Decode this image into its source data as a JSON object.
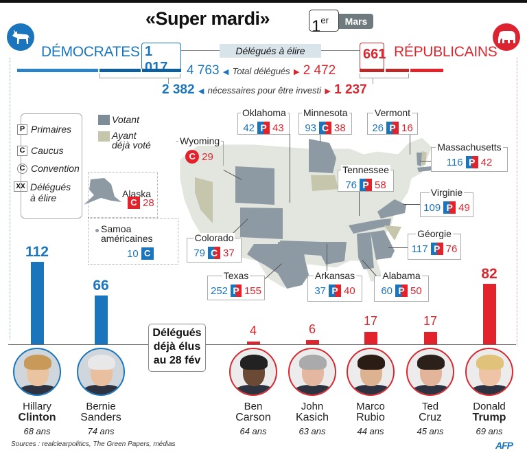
{
  "header": {
    "title": "«Super mardi»",
    "day": "1",
    "day_suffix": "er",
    "month": "Mars"
  },
  "parties": {
    "dem": {
      "name": "DÉMOCRATES",
      "to_elect": "1 017",
      "total": "4 763",
      "needed": "2 382",
      "icon": "donkey-icon",
      "color": "#1a75bc"
    },
    "rep": {
      "name": "RÉPUBLICAINS",
      "to_elect": "661",
      "total": "2 472",
      "needed": "1 237",
      "icon": "elephant-icon",
      "color": "#d7282f"
    }
  },
  "labels": {
    "to_elect": "Délégués à élire",
    "total": "Total délégués",
    "needed": "nécessaires pour être investi"
  },
  "legend": {
    "primary_glyph": "P",
    "primary": "Primaires",
    "caucus_glyph": "C",
    "caucus": "Caucus",
    "convention_glyph": "C",
    "convention": "Convention",
    "delegates_glyph": "XX",
    "delegates_line1": "Délégués",
    "delegates_line2": "à élire",
    "voting": "Votant",
    "voted_line1": "Ayant",
    "voted_line2": "déjà voté"
  },
  "states": [
    {
      "name": "Oklahoma",
      "dem": "42",
      "type": "P",
      "rep": "43"
    },
    {
      "name": "Minnesota",
      "dem": "93",
      "type": "C",
      "rep": "38"
    },
    {
      "name": "Vermont",
      "dem": "26",
      "type": "P",
      "rep": "16"
    },
    {
      "name": "Wyoming",
      "dem": "",
      "type": "C",
      "rep": "29"
    },
    {
      "name": "Massachusetts",
      "dem": "116",
      "type": "P",
      "rep": "42"
    },
    {
      "name": "Tennessee",
      "dem": "76",
      "type": "P",
      "rep": "58"
    },
    {
      "name": "Alaska",
      "dem": "",
      "type": "C",
      "rep": "28"
    },
    {
      "name": "Virginie",
      "dem": "109",
      "type": "P",
      "rep": "49"
    },
    {
      "name": "Samoa",
      "name2": "américaines",
      "dem": "10",
      "type": "C",
      "rep": ""
    },
    {
      "name": "Colorado",
      "dem": "79",
      "type": "C",
      "rep": "37"
    },
    {
      "name": "Géorgie",
      "dem": "117",
      "type": "P",
      "rep": "76"
    },
    {
      "name": "Texas",
      "dem": "252",
      "type": "P",
      "rep": "155"
    },
    {
      "name": "Arkansas",
      "dem": "37",
      "type": "P",
      "rep": "40"
    },
    {
      "name": "Alabama",
      "dem": "60",
      "type": "P",
      "rep": "50"
    }
  ],
  "chart_data": {
    "type": "bar",
    "title": "Délégués déjà élus au 28 fév",
    "categories": [
      "Hillary Clinton",
      "Bernie Sanders",
      "Ben Carson",
      "John Kasich",
      "Marco Rubio",
      "Ted Cruz",
      "Donald Trump"
    ],
    "values": [
      112,
      66,
      4,
      6,
      17,
      17,
      82
    ],
    "ylim": [
      0,
      112
    ],
    "grid": false,
    "legend": "none",
    "candidates": [
      {
        "first": "Hillary",
        "last": "Clinton",
        "age": "68 ans",
        "party": "dem",
        "value": 112,
        "value_label": "112",
        "bold_last": true
      },
      {
        "first": "Bernie",
        "last": "Sanders",
        "age": "74 ans",
        "party": "dem",
        "value": 66,
        "value_label": "66",
        "bold_last": false
      },
      {
        "first": "Ben",
        "last": "Carson",
        "age": "64 ans",
        "party": "rep",
        "value": 4,
        "value_label": "4",
        "bold_last": false
      },
      {
        "first": "John",
        "last": "Kasich",
        "age": "63 ans",
        "party": "rep",
        "value": 6,
        "value_label": "6",
        "bold_last": false
      },
      {
        "first": "Marco",
        "last": "Rubio",
        "age": "44 ans",
        "party": "rep",
        "value": 17,
        "value_label": "17",
        "bold_last": false
      },
      {
        "first": "Ted",
        "last": "Cruz",
        "age": "45 ans",
        "party": "rep",
        "value": 17,
        "value_label": "17",
        "bold_last": false
      },
      {
        "first": "Donald",
        "last": "Trump",
        "age": "69 ans",
        "party": "rep",
        "value": 82,
        "value_label": "82",
        "bold_last": true
      }
    ],
    "elus_line1": "Délégués",
    "elus_line2": "déjà élus",
    "elus_line3": "au 28 fév"
  },
  "footer": {
    "sources": "Sources : realclearpolitics, The Green Papers, médias",
    "agency": "AFP"
  },
  "colors": {
    "voting": "#7c8d99",
    "voted": "#c6c6ad",
    "land": "#e3e5df"
  }
}
